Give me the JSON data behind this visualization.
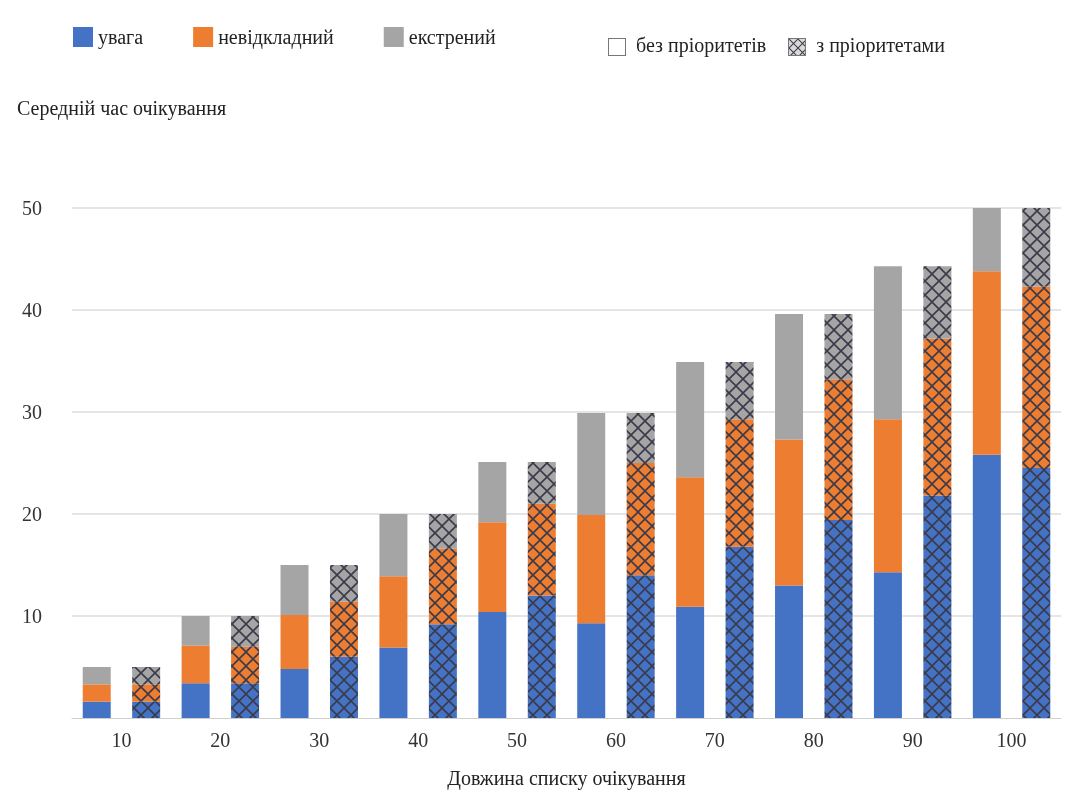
{
  "chart_data": {
    "type": "bar",
    "stacked": true,
    "ylabel": "Середній час очікування",
    "xlabel": "Довжина списку очікування",
    "categories": [
      "10",
      null,
      "20",
      null,
      "30",
      null,
      "40",
      null,
      "50",
      null,
      "60",
      null,
      "70",
      null,
      "80",
      null,
      "90",
      null,
      "100",
      null
    ],
    "series": [
      {
        "name": "увага",
        "color": "#4472c4",
        "values": [
          1.6,
          1.6,
          3.4,
          3.4,
          4.8,
          6,
          6.9,
          9.2,
          10.4,
          12,
          9.3,
          14,
          10.9,
          16.8,
          13,
          19.4,
          14.3,
          21.8,
          25.8,
          24.5
        ]
      },
      {
        "name": "невідкладний",
        "color": "#ed7d31",
        "values": [
          1.7,
          1.7,
          3.7,
          3.6,
          5.3,
          5.4,
          7,
          7.4,
          8.8,
          9,
          10.6,
          11,
          12.7,
          12.5,
          14.3,
          13.8,
          15,
          15.4,
          18,
          17.8
        ]
      },
      {
        "name": "екстрений",
        "color": "#a5a5a5",
        "values": [
          1.7,
          1.7,
          2.9,
          3,
          4.9,
          3.6,
          6.1,
          3.4,
          5.9,
          4.1,
          10,
          4.9,
          11.3,
          5.6,
          12.3,
          6.4,
          15,
          7.1,
          6.2,
          7.7
        ]
      }
    ],
    "annotations": [
      "без пріоритетів",
      "з пріоритетами"
    ],
    "ylim": [
      0,
      50
    ],
    "yticks": [
      10,
      20,
      30,
      40,
      50
    ],
    "grid": "y",
    "legend": "top"
  }
}
